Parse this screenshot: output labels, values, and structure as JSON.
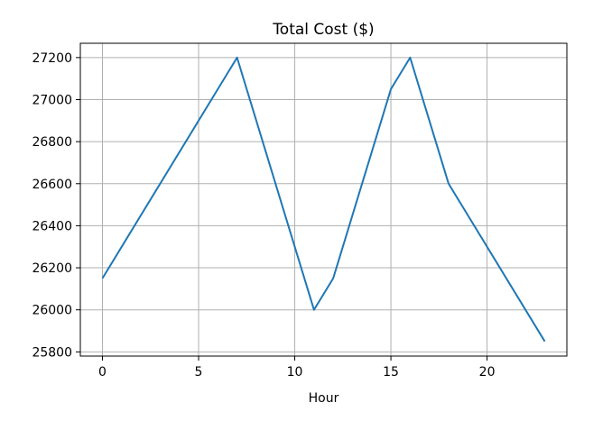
{
  "chart_data": {
    "type": "line",
    "title": "Total Cost ($)",
    "xlabel": "Hour",
    "ylabel": "",
    "xlim": [
      -1.15,
      24.15
    ],
    "ylim": [
      25780,
      27268
    ],
    "xticks": [
      0,
      5,
      10,
      15,
      20
    ],
    "yticks": [
      25800,
      26000,
      26200,
      26400,
      26600,
      26800,
      27000,
      27200
    ],
    "grid": true,
    "legend": "none",
    "series": [
      {
        "color": "#1f77b4",
        "x": [
          0,
          7,
          11,
          12,
          15,
          16,
          18,
          23
        ],
        "values": [
          26150,
          27200,
          26000,
          26150,
          27050,
          27200,
          26600,
          25850
        ]
      }
    ]
  }
}
